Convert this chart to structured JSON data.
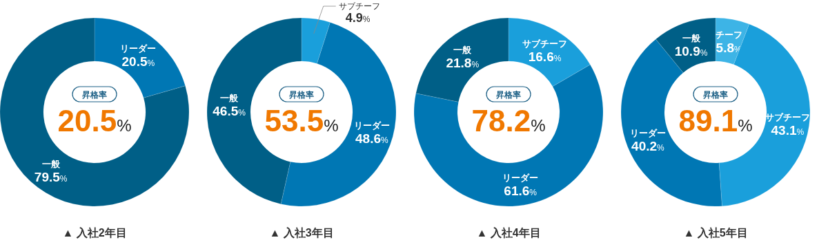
{
  "chart_data": [
    {
      "type": "donut",
      "title": "▲ 入社2年目",
      "categories": [
        "リーダー",
        "一般"
      ],
      "values": [
        20.5,
        79.5
      ],
      "colors": [
        "#0077b4",
        "#005f87"
      ],
      "value_labels": [
        "20.5%",
        "79.5%"
      ],
      "annotations": [
        "昇格率",
        "20.5%"
      ]
    },
    {
      "type": "donut",
      "title": "▲ 入社3年目",
      "categories": [
        "サブチーフ",
        "リーダー",
        "一般"
      ],
      "values": [
        4.9,
        48.6,
        46.5
      ],
      "colors": [
        "#1a9fdb",
        "#0077b4",
        "#005f87"
      ],
      "value_labels": [
        "4.9%",
        "48.6%",
        "46.5%"
      ],
      "annotations": [
        "昇格率",
        "53.5%"
      ]
    },
    {
      "type": "donut",
      "title": "▲ 入社4年目",
      "categories": [
        "サブチーフ",
        "リーダー",
        "一般"
      ],
      "values": [
        16.6,
        61.6,
        21.8
      ],
      "colors": [
        "#1a9fdb",
        "#0077b4",
        "#005f87"
      ],
      "value_labels": [
        "16.6%",
        "61.6%",
        "21.8%"
      ],
      "annotations": [
        "昇格率",
        "78.2%"
      ]
    },
    {
      "type": "donut",
      "title": "▲ 入社5年目",
      "categories": [
        "チーフ",
        "サブチーフ",
        "リーダー",
        "一般"
      ],
      "values": [
        5.8,
        43.1,
        40.2,
        10.9
      ],
      "colors": [
        "#3db4e6",
        "#1a9fdb",
        "#0077b4",
        "#005f87"
      ],
      "value_labels": [
        "5.8%",
        "43.1%",
        "40.2%",
        "10.9%"
      ],
      "annotations": [
        "昇格率",
        "89.1%"
      ]
    }
  ]
}
